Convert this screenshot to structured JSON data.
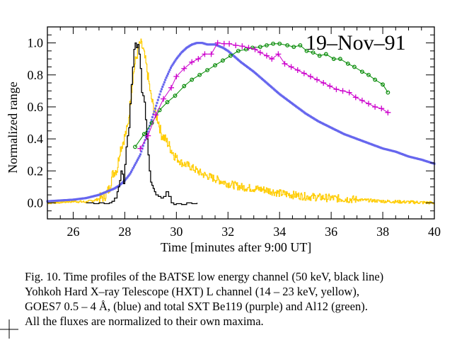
{
  "chart_data": {
    "type": "line",
    "title": "",
    "annotation": "19–Nov–91",
    "xlabel": "Time [minutes after 9:00 UT]",
    "ylabel": "Normalized range",
    "xlim": [
      25,
      40
    ],
    "ylim": [
      -0.1,
      1.1
    ],
    "grid": false,
    "legend": "none (described in caption)",
    "x_ticks": [
      26,
      28,
      30,
      32,
      34,
      36,
      38,
      40
    ],
    "x_tick_labels": [
      "26",
      "28",
      "30",
      "32",
      "34",
      "36",
      "38",
      "40"
    ],
    "y_ticks": [
      0.0,
      0.2,
      0.4,
      0.6,
      0.8,
      1.0
    ],
    "y_tick_labels": [
      "0.0",
      "0.2",
      "0.4",
      "0.6",
      "0.8",
      "1.0"
    ],
    "series": [
      {
        "name": "BATSE low energy channel (50 keV)",
        "color": "#000000",
        "style": "step",
        "x": [
          26.5,
          26.8,
          27.0,
          27.2,
          27.4,
          27.5,
          27.6,
          27.7,
          27.75,
          27.8,
          27.85,
          27.9,
          27.95,
          28.0,
          28.05,
          28.1,
          28.15,
          28.2,
          28.25,
          28.3,
          28.35,
          28.4,
          28.45,
          28.5,
          28.55,
          28.6,
          28.65,
          28.7,
          28.75,
          28.8,
          28.85,
          28.9,
          28.95,
          29.0,
          29.05,
          29.1,
          29.15,
          29.2,
          29.3,
          29.4,
          29.5,
          29.6,
          29.7,
          29.8,
          29.9,
          30.0,
          30.2,
          30.4,
          30.6,
          30.8
        ],
        "y": [
          0.0,
          -0.005,
          0.0,
          -0.005,
          0.0,
          0.01,
          0.03,
          0.07,
          0.1,
          0.14,
          0.2,
          0.18,
          0.12,
          0.24,
          0.35,
          0.42,
          0.47,
          0.62,
          0.74,
          0.85,
          0.96,
          1.0,
          0.97,
          0.99,
          0.93,
          0.84,
          0.69,
          0.67,
          0.63,
          0.52,
          0.4,
          0.3,
          0.2,
          0.13,
          0.11,
          0.09,
          0.07,
          0.05,
          0.04,
          0.03,
          0.04,
          0.07,
          0.04,
          0.0,
          -0.01,
          -0.005,
          -0.01,
          0.0,
          -0.005,
          0.0
        ]
      },
      {
        "name": "Yohkoh HXT L channel (14-23 keV)",
        "color": "#FFCC00",
        "style": "step-noisy",
        "x": [
          25.0,
          25.5,
          26.0,
          26.5,
          26.9,
          27.2,
          27.4,
          27.5,
          27.6,
          27.7,
          27.8,
          27.9,
          28.0,
          28.1,
          28.2,
          28.3,
          28.4,
          28.5,
          28.6,
          28.7,
          28.8,
          28.9,
          29.0,
          29.1,
          29.2,
          29.3,
          29.4,
          29.6,
          29.8,
          30.0,
          30.2,
          30.5,
          30.8,
          31.0,
          31.5,
          32.0,
          32.5,
          33.0,
          33.5,
          34.0,
          35.0,
          36.0,
          37.0,
          38.0,
          39.0,
          40.0
        ],
        "y": [
          0.0,
          0.005,
          0.01,
          0.005,
          0.02,
          0.04,
          0.09,
          0.17,
          0.2,
          0.21,
          0.33,
          0.37,
          0.42,
          0.47,
          0.62,
          0.78,
          0.88,
          0.95,
          1.0,
          0.96,
          0.88,
          0.78,
          0.67,
          0.6,
          0.55,
          0.51,
          0.43,
          0.39,
          0.33,
          0.28,
          0.25,
          0.23,
          0.2,
          0.18,
          0.15,
          0.12,
          0.1,
          0.09,
          0.08,
          0.06,
          0.04,
          0.03,
          0.02,
          0.01,
          0.005,
          0.0
        ]
      },
      {
        "name": "GOES7 0.5-4 Å",
        "color": "#6666EE",
        "style": "dots",
        "x": [
          25.0,
          25.5,
          26.0,
          26.5,
          27.0,
          27.3,
          27.6,
          27.8,
          28.0,
          28.2,
          28.4,
          28.6,
          28.8,
          29.0,
          29.2,
          29.4,
          29.6,
          29.8,
          30.0,
          30.2,
          30.4,
          30.6,
          30.8,
          31.0,
          31.2,
          31.5,
          31.8,
          32.0,
          32.5,
          33.0,
          33.5,
          34.0,
          34.5,
          35.0,
          35.5,
          36.0,
          36.5,
          37.0,
          37.5,
          38.0,
          38.5,
          39.0,
          39.5,
          40.0
        ],
        "y": [
          0.01,
          0.015,
          0.02,
          0.03,
          0.05,
          0.07,
          0.09,
          0.11,
          0.14,
          0.18,
          0.24,
          0.3,
          0.4,
          0.5,
          0.6,
          0.7,
          0.78,
          0.85,
          0.9,
          0.94,
          0.97,
          0.99,
          1.0,
          1.0,
          0.99,
          0.99,
          0.97,
          0.95,
          0.88,
          0.82,
          0.75,
          0.68,
          0.62,
          0.56,
          0.51,
          0.47,
          0.43,
          0.4,
          0.37,
          0.34,
          0.32,
          0.29,
          0.27,
          0.245
        ]
      },
      {
        "name": "SXT Be119 (total)",
        "color": "#CC00CC",
        "style": "line-plus",
        "x": [
          28.6,
          28.9,
          29.2,
          29.5,
          29.8,
          30.0,
          30.3,
          30.6,
          30.85,
          31.1,
          31.35,
          31.6,
          31.85,
          32.05,
          32.3,
          32.55,
          32.8,
          33.05,
          33.25,
          33.5,
          33.7,
          33.95,
          34.2,
          34.45,
          34.7,
          34.95,
          35.2,
          35.45,
          35.7,
          35.95,
          36.2,
          36.45,
          36.7,
          36.95,
          37.2,
          37.45,
          37.7,
          37.95,
          38.2
        ],
        "y": [
          0.34,
          0.42,
          0.55,
          0.65,
          0.72,
          0.79,
          0.84,
          0.88,
          0.9,
          0.93,
          0.93,
          1.0,
          0.995,
          0.995,
          0.985,
          0.98,
          0.97,
          0.96,
          0.94,
          0.92,
          0.9,
          0.93,
          0.87,
          0.85,
          0.83,
          0.81,
          0.79,
          0.77,
          0.75,
          0.73,
          0.71,
          0.7,
          0.69,
          0.66,
          0.64,
          0.62,
          0.6,
          0.59,
          0.565
        ]
      },
      {
        "name": "SXT Al12 (total)",
        "color": "#008800",
        "style": "line-circle",
        "x": [
          28.4,
          28.75,
          29.05,
          29.35,
          29.65,
          29.95,
          30.3,
          30.6,
          30.9,
          31.2,
          31.5,
          31.8,
          32.1,
          32.4,
          32.7,
          32.95,
          33.25,
          33.5,
          33.75,
          34.0,
          34.3,
          34.55,
          34.8,
          35.05,
          35.3,
          35.55,
          35.8,
          36.1,
          36.35,
          36.65,
          36.9,
          37.2,
          37.45,
          37.7,
          38.0,
          38.2
        ],
        "y": [
          0.35,
          0.43,
          0.5,
          0.58,
          0.63,
          0.67,
          0.73,
          0.77,
          0.8,
          0.83,
          0.86,
          0.89,
          0.92,
          0.95,
          0.96,
          0.97,
          0.975,
          0.985,
          0.995,
          0.995,
          0.985,
          0.975,
          0.985,
          0.95,
          0.94,
          0.92,
          0.93,
          0.9,
          0.9,
          0.87,
          0.85,
          0.82,
          0.8,
          0.77,
          0.74,
          0.69
        ]
      }
    ]
  },
  "caption": {
    "lines": [
      "Fig. 10. Time profiles of the  BATSE low energy channel (50 keV, black line)",
      "Yohkoh Hard X–ray Telescope (HXT) L channel (14 – 23 keV, yellow),",
      "GOES7 0.5 – 4 Å, (blue) and total SXT Be119 (purple) and Al12 (green).",
      "All the fluxes are normalized to their own maxima."
    ]
  }
}
